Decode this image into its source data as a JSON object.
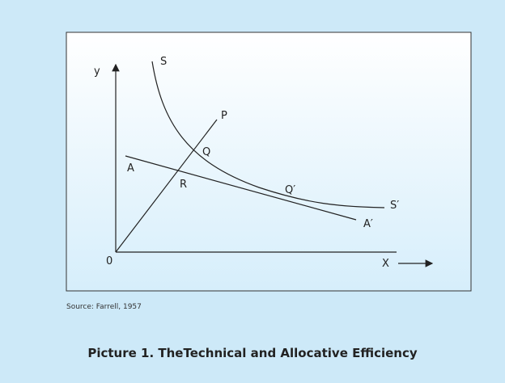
{
  "diagram": {
    "labels": {
      "y": "y",
      "origin": "0",
      "x": "X",
      "S": "S",
      "S_prime": "S′",
      "P": "P",
      "A": "A",
      "A_prime": "A′",
      "Q": "Q",
      "R": "R",
      "Q_prime": "Q′"
    },
    "source": "Source: Farrell, 1957",
    "caption": "Picture 1. TheTechnical and Allocative Efficiency"
  }
}
